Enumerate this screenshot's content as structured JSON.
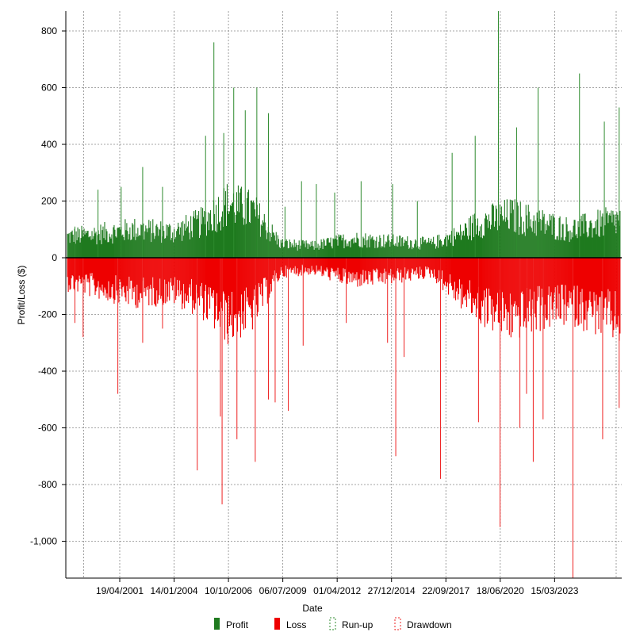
{
  "chart_data": {
    "type": "bar",
    "xlabel": "Date",
    "ylabel": "Profit/Loss ($)",
    "ylim": [
      -1130,
      870
    ],
    "yticks": [
      800,
      600,
      400,
      200,
      0,
      -200,
      -400,
      -600,
      -800,
      -1000
    ],
    "ytick_labels": [
      "800",
      "600",
      "400",
      "200",
      "0",
      "-200",
      "-400",
      "-600",
      "-800",
      "-1,000"
    ],
    "xlim": [
      "1998-08-01",
      "2026-08-01"
    ],
    "xticks": [
      "2001-04-19",
      "2004-01-14",
      "2006-10-10",
      "2009-07-06",
      "2012-04-01",
      "2014-12-27",
      "2017-09-22",
      "2020-06-18",
      "2023-03-15"
    ],
    "xtick_labels": [
      "19/04/2001",
      "14/01/2004",
      "10/10/2006",
      "06/07/2009",
      "01/04/2012",
      "27/12/2014",
      "22/09/2017",
      "18/06/2020",
      "15/03/2023"
    ],
    "grid": true,
    "legend_position": "bottom",
    "colors": {
      "profit": "#1f7a1f",
      "loss": "#ee0000",
      "runup": "#2e8b2e",
      "drawdown": "#ee2222",
      "zero_line": "#000000",
      "grid": "#888888"
    },
    "series": [
      {
        "name": "Profit",
        "kind": "bar",
        "approx_envelope": [
          [
            "1998-09",
            90
          ],
          [
            "2000-01",
            100
          ],
          [
            "2002-01",
            120
          ],
          [
            "2004-01",
            110
          ],
          [
            "2005-06",
            150
          ],
          [
            "2006-10",
            230
          ],
          [
            "2008-01",
            200
          ],
          [
            "2009-06",
            60
          ],
          [
            "2011-01",
            50
          ],
          [
            "2013-01",
            80
          ],
          [
            "2015-01",
            70
          ],
          [
            "2017-01",
            60
          ],
          [
            "2018-06",
            100
          ],
          [
            "2019-06",
            150
          ],
          [
            "2021-01",
            180
          ],
          [
            "2022-06",
            150
          ],
          [
            "2024-01",
            120
          ],
          [
            "2026-07",
            160
          ]
        ]
      },
      {
        "name": "Loss",
        "kind": "bar",
        "approx_envelope": [
          [
            "1998-09",
            -100
          ],
          [
            "2000-01",
            -120
          ],
          [
            "2002-01",
            -150
          ],
          [
            "2004-01",
            -140
          ],
          [
            "2005-06",
            -180
          ],
          [
            "2006-10",
            -260
          ],
          [
            "2008-01",
            -220
          ],
          [
            "2009-06",
            -60
          ],
          [
            "2011-01",
            -50
          ],
          [
            "2013-01",
            -90
          ],
          [
            "2015-01",
            -80
          ],
          [
            "2017-01",
            -60
          ],
          [
            "2018-06",
            -150
          ],
          [
            "2019-06",
            -200
          ],
          [
            "2021-01",
            -250
          ],
          [
            "2022-06",
            -220
          ],
          [
            "2024-01",
            -200
          ],
          [
            "2026-07",
            -260
          ]
        ]
      },
      {
        "name": "Run-up",
        "kind": "spike",
        "peaks": [
          [
            "1999-01",
            110
          ],
          [
            "2000-03",
            240
          ],
          [
            "2001-05",
            250
          ],
          [
            "2002-06",
            320
          ],
          [
            "2003-06",
            250
          ],
          [
            "2005-08",
            430
          ],
          [
            "2006-01",
            760
          ],
          [
            "2006-07",
            440
          ],
          [
            "2007-01",
            600
          ],
          [
            "2007-08",
            520
          ],
          [
            "2008-03",
            600
          ],
          [
            "2008-10",
            510
          ],
          [
            "2009-08",
            180
          ],
          [
            "2010-06",
            270
          ],
          [
            "2011-03",
            260
          ],
          [
            "2012-02",
            230
          ],
          [
            "2013-06",
            270
          ],
          [
            "2015-01",
            260
          ],
          [
            "2016-04",
            200
          ],
          [
            "2018-01",
            370
          ],
          [
            "2019-03",
            430
          ],
          [
            "2020-05",
            870
          ],
          [
            "2021-04",
            460
          ],
          [
            "2022-05",
            600
          ],
          [
            "2024-06",
            650
          ],
          [
            "2025-09",
            480
          ],
          [
            "2026-06",
            530
          ]
        ]
      },
      {
        "name": "Drawdown",
        "kind": "spike",
        "troughs": [
          [
            "1999-01",
            -230
          ],
          [
            "1999-06",
            -280
          ],
          [
            "2001-03",
            -480
          ],
          [
            "2002-06",
            -300
          ],
          [
            "2003-06",
            -250
          ],
          [
            "2005-03",
            -750
          ],
          [
            "2006-05",
            -560
          ],
          [
            "2006-06",
            -870
          ],
          [
            "2007-03",
            -640
          ],
          [
            "2008-02",
            -720
          ],
          [
            "2008-10",
            -500
          ],
          [
            "2009-02",
            -510
          ],
          [
            "2009-10",
            -540
          ],
          [
            "2010-07",
            -310
          ],
          [
            "2012-09",
            -230
          ],
          [
            "2014-10",
            -300
          ],
          [
            "2015-03",
            -700
          ],
          [
            "2015-08",
            -350
          ],
          [
            "2017-06",
            -780
          ],
          [
            "2019-05",
            -580
          ],
          [
            "2020-06",
            -950
          ],
          [
            "2021-06",
            -600
          ],
          [
            "2021-10",
            -480
          ],
          [
            "2022-02",
            -720
          ],
          [
            "2022-08",
            -570
          ],
          [
            "2024-02",
            -1130
          ],
          [
            "2025-08",
            -640
          ],
          [
            "2026-06",
            -530
          ]
        ]
      }
    ]
  }
}
